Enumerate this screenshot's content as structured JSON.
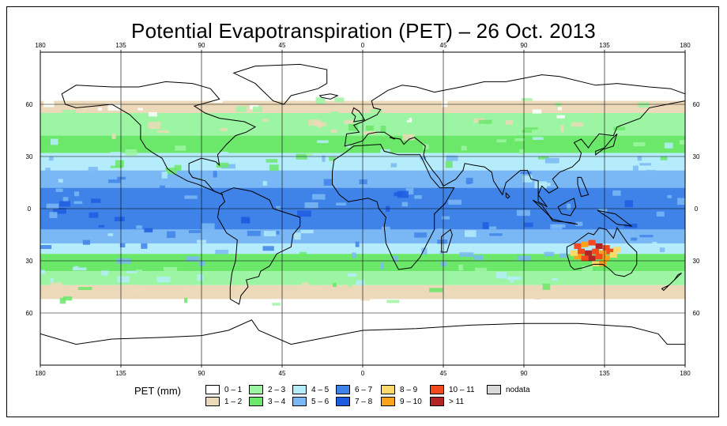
{
  "title": "Potential Evapotranspiration (PET) – 26 Oct. 2013",
  "axes": {
    "lon_ticks": [
      "180",
      "135",
      "90",
      "45",
      "0",
      "45",
      "90",
      "135",
      "180"
    ],
    "lat_ticks": [
      "60",
      "30",
      "0",
      "30",
      "60"
    ],
    "lon_range": [
      -180,
      180
    ],
    "lat_range": [
      -90,
      90
    ]
  },
  "legend": {
    "title": "PET (mm)",
    "items": [
      {
        "label": "0 – 1",
        "color": "#ffffff"
      },
      {
        "label": "1 – 2",
        "color": "#ecd9b9"
      },
      {
        "label": "2 – 3",
        "color": "#9cf5a2"
      },
      {
        "label": "3 – 4",
        "color": "#6be86a"
      },
      {
        "label": "4 – 5",
        "color": "#b5ecfb"
      },
      {
        "label": "5 – 6",
        "color": "#7ab8f5"
      },
      {
        "label": "6 – 7",
        "color": "#3f83e8"
      },
      {
        "label": "7 – 8",
        "color": "#1f5de0"
      },
      {
        "label": "8 – 9",
        "color": "#fbd96b"
      },
      {
        "label": "9 – 10",
        "color": "#fca31b"
      },
      {
        "label": "10 – 11",
        "color": "#f24a1e"
      },
      {
        "label": "> 11",
        "color": "#b32424"
      },
      {
        "label": "nodata",
        "color": "#d8d8d8"
      }
    ]
  },
  "colors": {
    "frame": "#000000",
    "coastline": "#000000",
    "grid": "#000000"
  }
}
